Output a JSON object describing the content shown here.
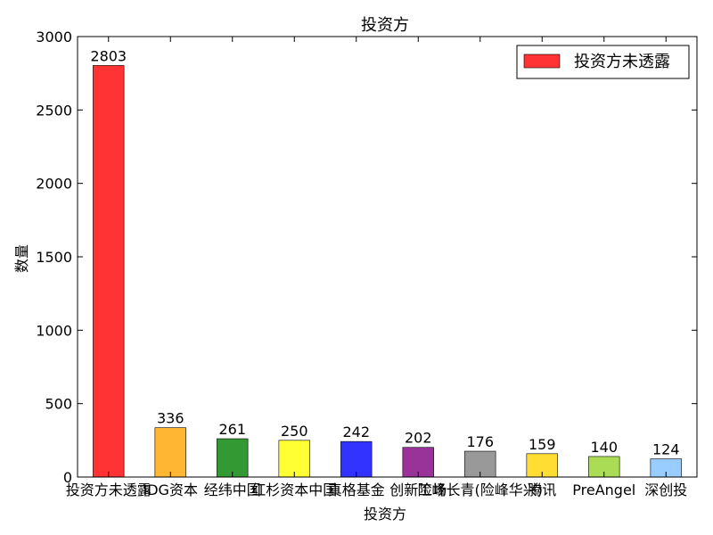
{
  "chart_data": {
    "type": "bar",
    "title": "投资方",
    "xlabel": "投资方",
    "ylabel": "数量",
    "ylim": [
      0,
      3000
    ],
    "yticks": [
      0,
      500,
      1000,
      1500,
      2000,
      2500,
      3000
    ],
    "grid": false,
    "legend": {
      "position": "top-right",
      "entries": [
        "投资方未透露"
      ]
    },
    "categories": [
      "投资方未透露",
      "IDG资本",
      "经纬中国",
      "红杉资本中国",
      "真格基金",
      "创新工场",
      "险峰长青(险峰华兴)",
      "腾讯",
      "PreAngel",
      "深创投"
    ],
    "values": [
      2803,
      336,
      261,
      250,
      242,
      202,
      176,
      159,
      140,
      124
    ],
    "colors": [
      "#ff3333",
      "#ffb733",
      "#339933",
      "#ffff33",
      "#3333ff",
      "#993399",
      "#999999",
      "#ffdd33",
      "#aadd55",
      "#99ccff"
    ]
  }
}
